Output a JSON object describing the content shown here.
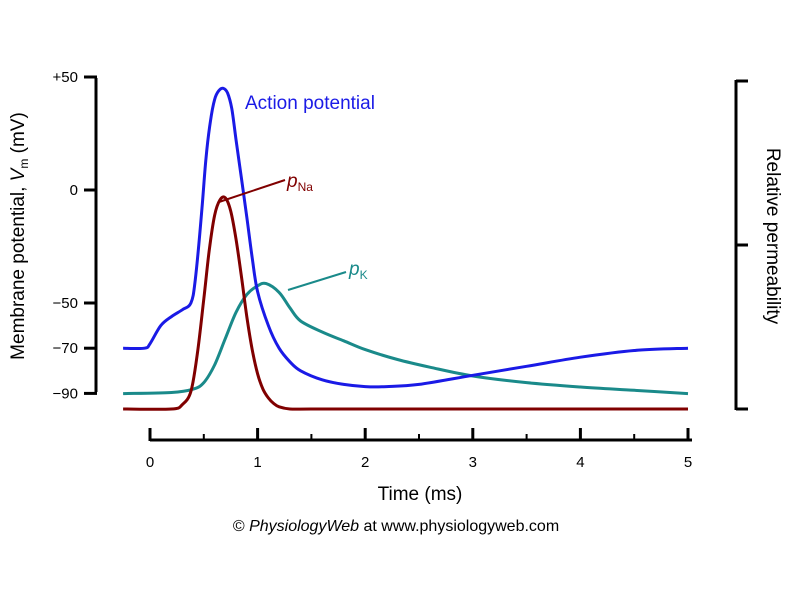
{
  "chart_data": {
    "type": "line",
    "xlabel": "Time (ms)",
    "ylabel_left": {
      "prefix": "Membrane potential, ",
      "symbol": "V",
      "subscript": "m",
      "unit": " (mV)"
    },
    "ylabel_right": "Relative permeability",
    "x_ticks": [
      "0",
      "1",
      "2",
      "3",
      "4",
      "5"
    ],
    "x_range": [
      -0.25,
      5.0
    ],
    "y_ticks": [
      "+50",
      "0",
      "−50",
      "−70",
      "−90"
    ],
    "y_tick_values": [
      50,
      0,
      -50,
      -70,
      -90
    ],
    "y_range": [
      -90,
      50
    ],
    "series": [
      {
        "name": "Action potential",
        "color": "#1a1ae6",
        "axis": "left",
        "x": [
          -0.25,
          -0.05,
          0.0,
          0.1,
          0.2,
          0.3,
          0.38,
          0.42,
          0.48,
          0.52,
          0.56,
          0.6,
          0.64,
          0.68,
          0.72,
          0.76,
          0.8,
          0.85,
          0.9,
          0.95,
          1.0,
          1.1,
          1.2,
          1.3,
          1.4,
          1.6,
          1.8,
          2.0,
          2.2,
          2.5,
          3.0,
          3.5,
          4.0,
          4.5,
          5.0
        ],
        "y": [
          -70,
          -70,
          -68,
          -60,
          -56,
          -53,
          -50,
          -40,
          -10,
          14,
          30,
          40,
          44,
          45,
          43,
          36,
          22,
          5,
          -12,
          -30,
          -45,
          -60,
          -70,
          -76,
          -80,
          -84,
          -86,
          -87,
          -87,
          -86,
          -82,
          -78,
          -74,
          -71,
          -70
        ]
      },
      {
        "name": "pNa",
        "label": {
          "main": "p",
          "sub": "Na"
        },
        "color": "#800000",
        "axis": "right",
        "x": [
          -0.25,
          0.2,
          0.3,
          0.38,
          0.44,
          0.5,
          0.55,
          0.6,
          0.65,
          0.7,
          0.75,
          0.8,
          0.85,
          0.9,
          0.95,
          1.0,
          1.05,
          1.1,
          1.15,
          1.2,
          1.3,
          1.5,
          2.0,
          3.0,
          4.0,
          5.0
        ],
        "y": [
          0.0,
          0.0,
          0.02,
          0.08,
          0.25,
          0.5,
          0.72,
          0.88,
          0.95,
          0.96,
          0.9,
          0.77,
          0.6,
          0.42,
          0.27,
          0.16,
          0.09,
          0.05,
          0.025,
          0.01,
          0.0,
          0.0,
          0.0,
          0.0,
          0.0,
          0.0
        ]
      },
      {
        "name": "pK",
        "label": {
          "main": "p",
          "sub": "K"
        },
        "color": "#1a8a8a",
        "axis": "right",
        "x": [
          -0.25,
          0.2,
          0.4,
          0.5,
          0.6,
          0.7,
          0.8,
          0.9,
          1.0,
          1.08,
          1.2,
          1.3,
          1.4,
          1.6,
          1.8,
          2.0,
          2.3,
          2.6,
          3.0,
          3.5,
          4.0,
          4.5,
          5.0
        ],
        "y": [
          0.07,
          0.075,
          0.09,
          0.12,
          0.2,
          0.32,
          0.44,
          0.52,
          0.56,
          0.57,
          0.53,
          0.46,
          0.4,
          0.35,
          0.31,
          0.27,
          0.225,
          0.19,
          0.15,
          0.12,
          0.1,
          0.085,
          0.07
        ]
      }
    ],
    "annotations": {
      "copyright_symbol": "©",
      "copyright_brand": "PhysiologyWeb",
      "copyright_rest": " at www.physiologyweb.com"
    }
  }
}
